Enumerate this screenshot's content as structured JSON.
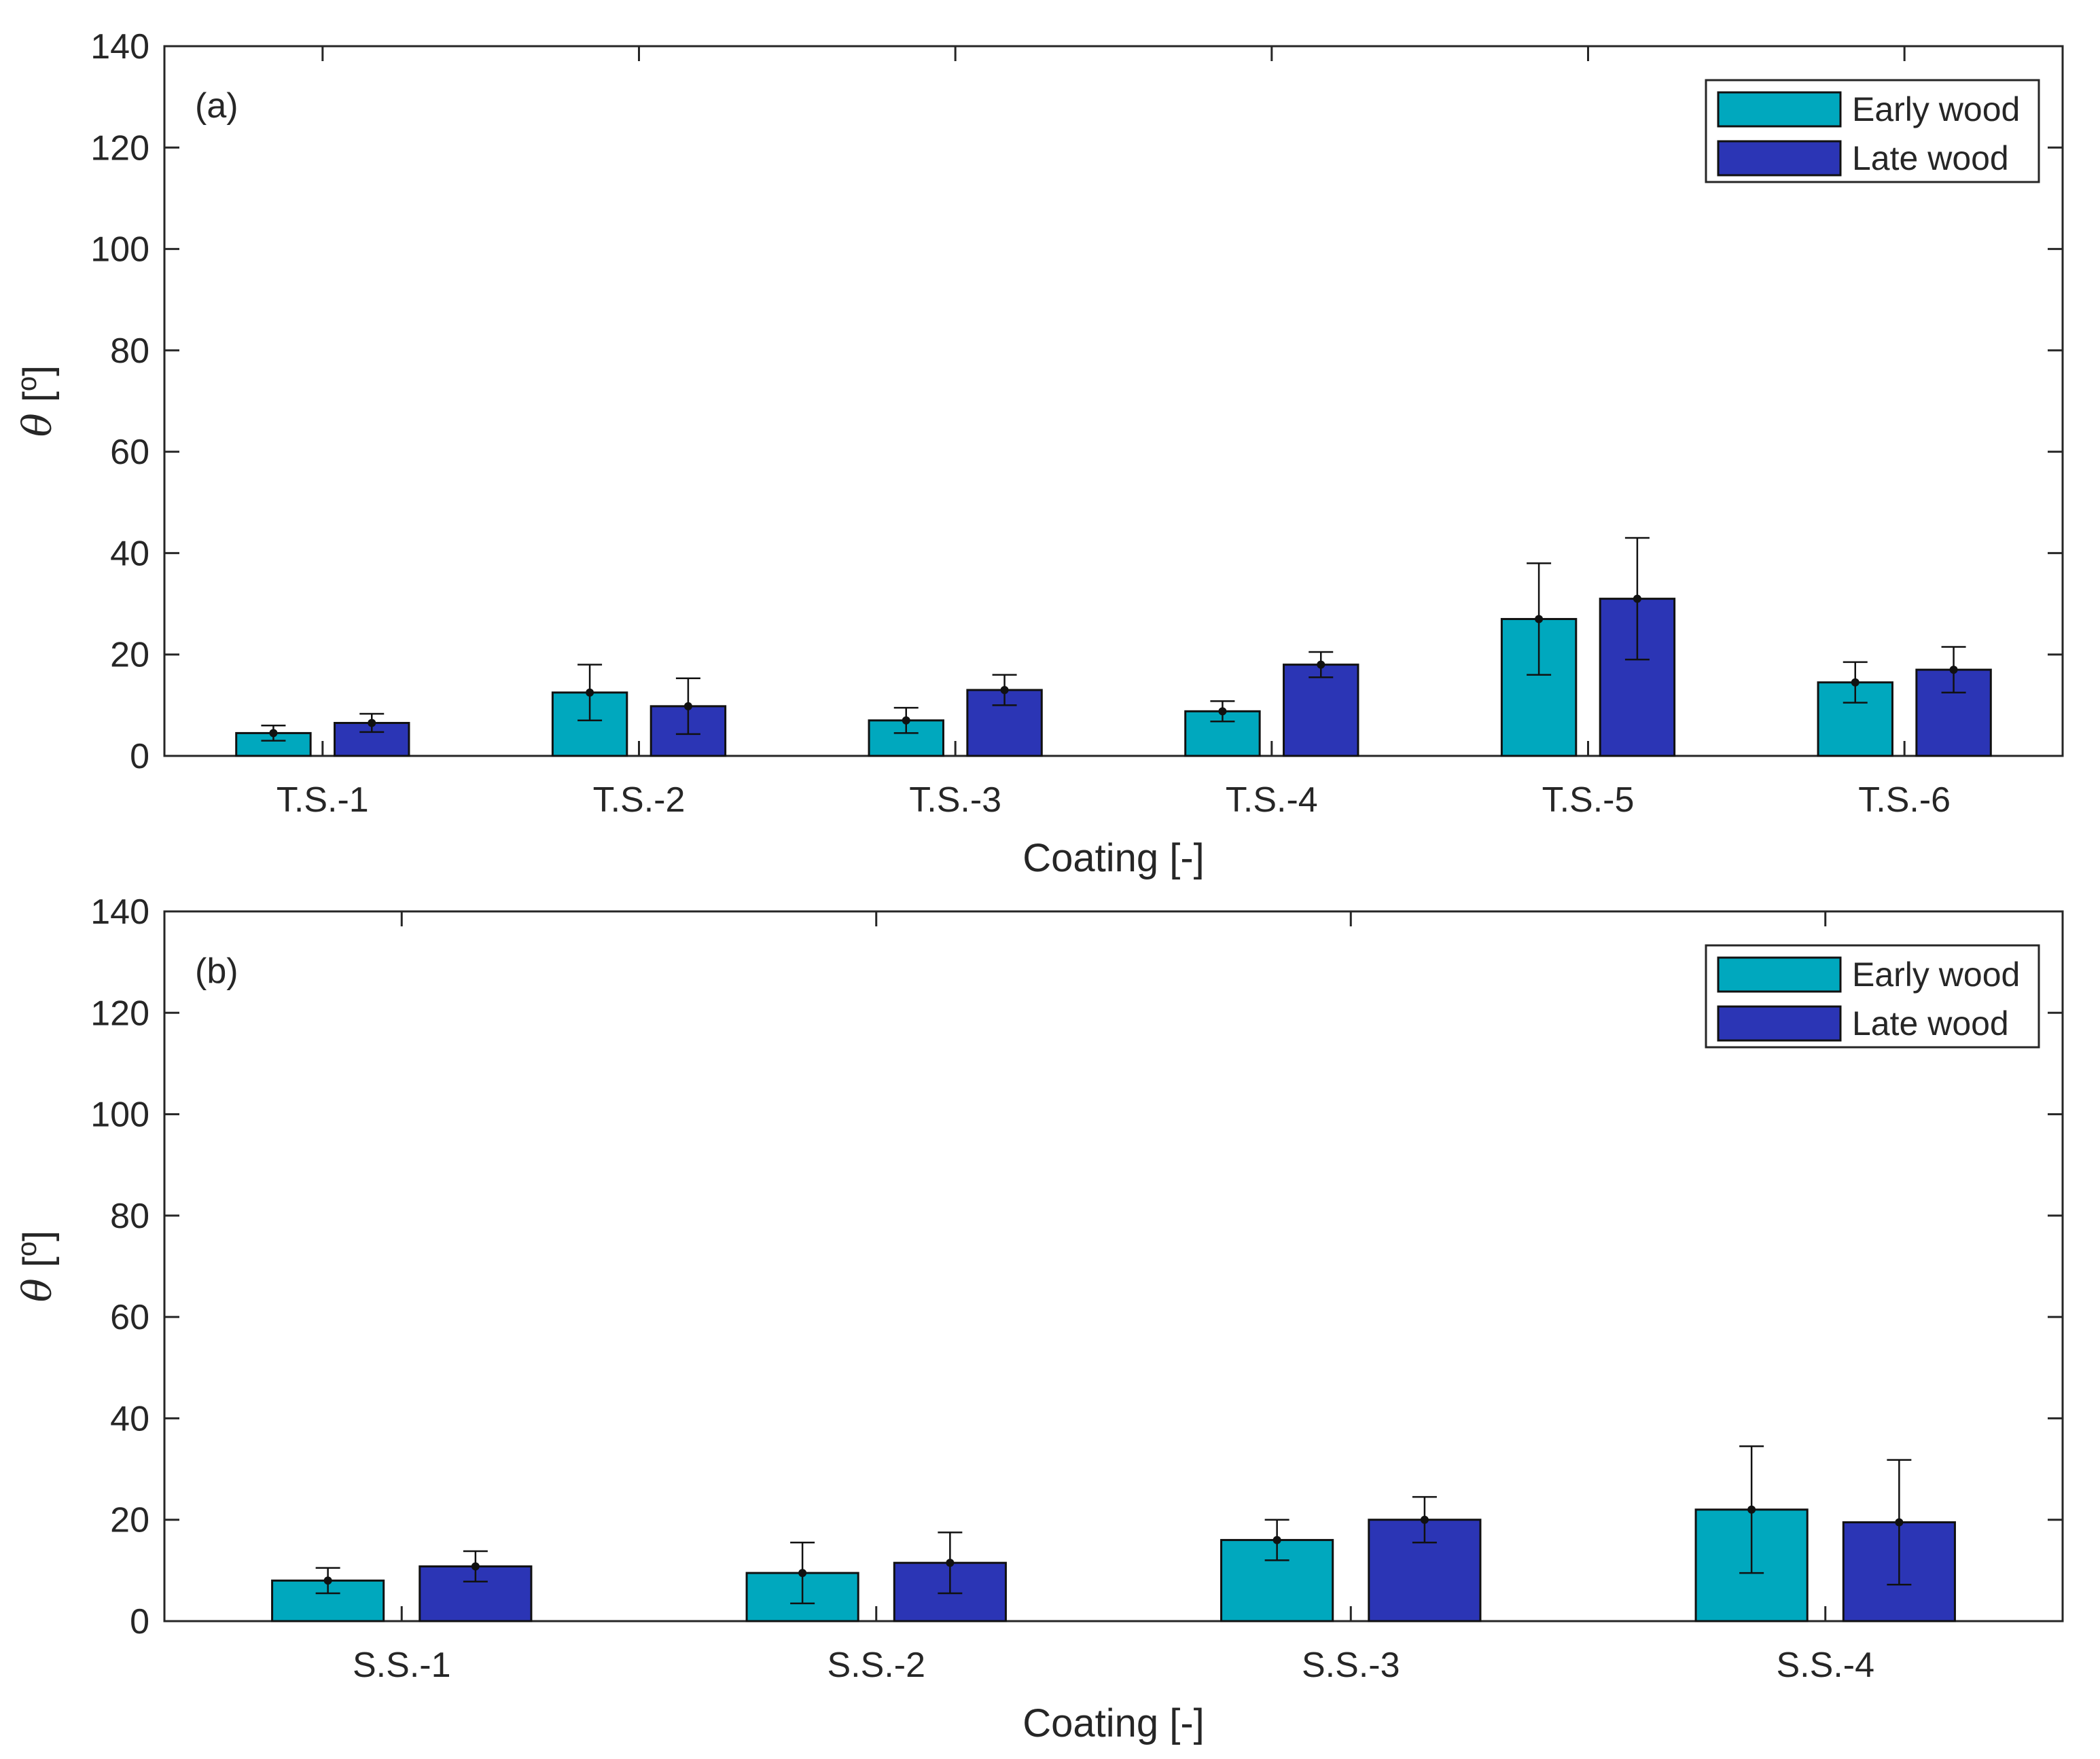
{
  "chart_data": [
    {
      "type": "bar",
      "panel_label": "(a)",
      "categories": [
        "T.S.-1",
        "T.S.-2",
        "T.S.-3",
        "T.S.-4",
        "T.S.-5",
        "T.S.-6"
      ],
      "series": [
        {
          "name": "Early wood",
          "color": "#00A8BE",
          "values": [
            4.5,
            12.5,
            7,
            8.8,
            27,
            14.5
          ],
          "errors": [
            1.5,
            5.5,
            2.5,
            2,
            11,
            4
          ]
        },
        {
          "name": "Late wood",
          "color": "#2B35B5",
          "values": [
            6.5,
            9.8,
            13,
            18,
            31,
            17
          ],
          "errors": [
            1.8,
            5.5,
            3,
            2.5,
            12,
            4.5
          ]
        }
      ],
      "xlabel": "Coating [-]",
      "ylabel": {
        "symbol": "θ",
        "unit_open": " [",
        "unit_sup": "o",
        "unit_close": "]"
      },
      "ylim": [
        0,
        140
      ],
      "yticks": [
        "0",
        "20",
        "40",
        "60",
        "80",
        "100",
        "120",
        "140"
      ],
      "legend": "top-right"
    },
    {
      "type": "bar",
      "panel_label": "(b)",
      "categories": [
        "S.S.-1",
        "S.S.-2",
        "S.S.-3",
        "S.S.-4"
      ],
      "series": [
        {
          "name": "Early wood",
          "color": "#00A8BE",
          "values": [
            8,
            9.5,
            16,
            22
          ],
          "errors": [
            2.5,
            6,
            4,
            12.5
          ]
        },
        {
          "name": "Late wood",
          "color": "#2B35B5",
          "values": [
            10.8,
            11.5,
            20,
            19.5
          ],
          "errors": [
            3,
            6,
            4.5,
            12.3
          ]
        }
      ],
      "xlabel": "Coating [-]",
      "ylabel": {
        "symbol": "θ",
        "unit_open": " [",
        "unit_sup": "o",
        "unit_close": "]"
      },
      "ylim": [
        0,
        140
      ],
      "yticks": [
        "0",
        "20",
        "40",
        "60",
        "80",
        "100",
        "120",
        "140"
      ],
      "legend": "top-right"
    }
  ]
}
